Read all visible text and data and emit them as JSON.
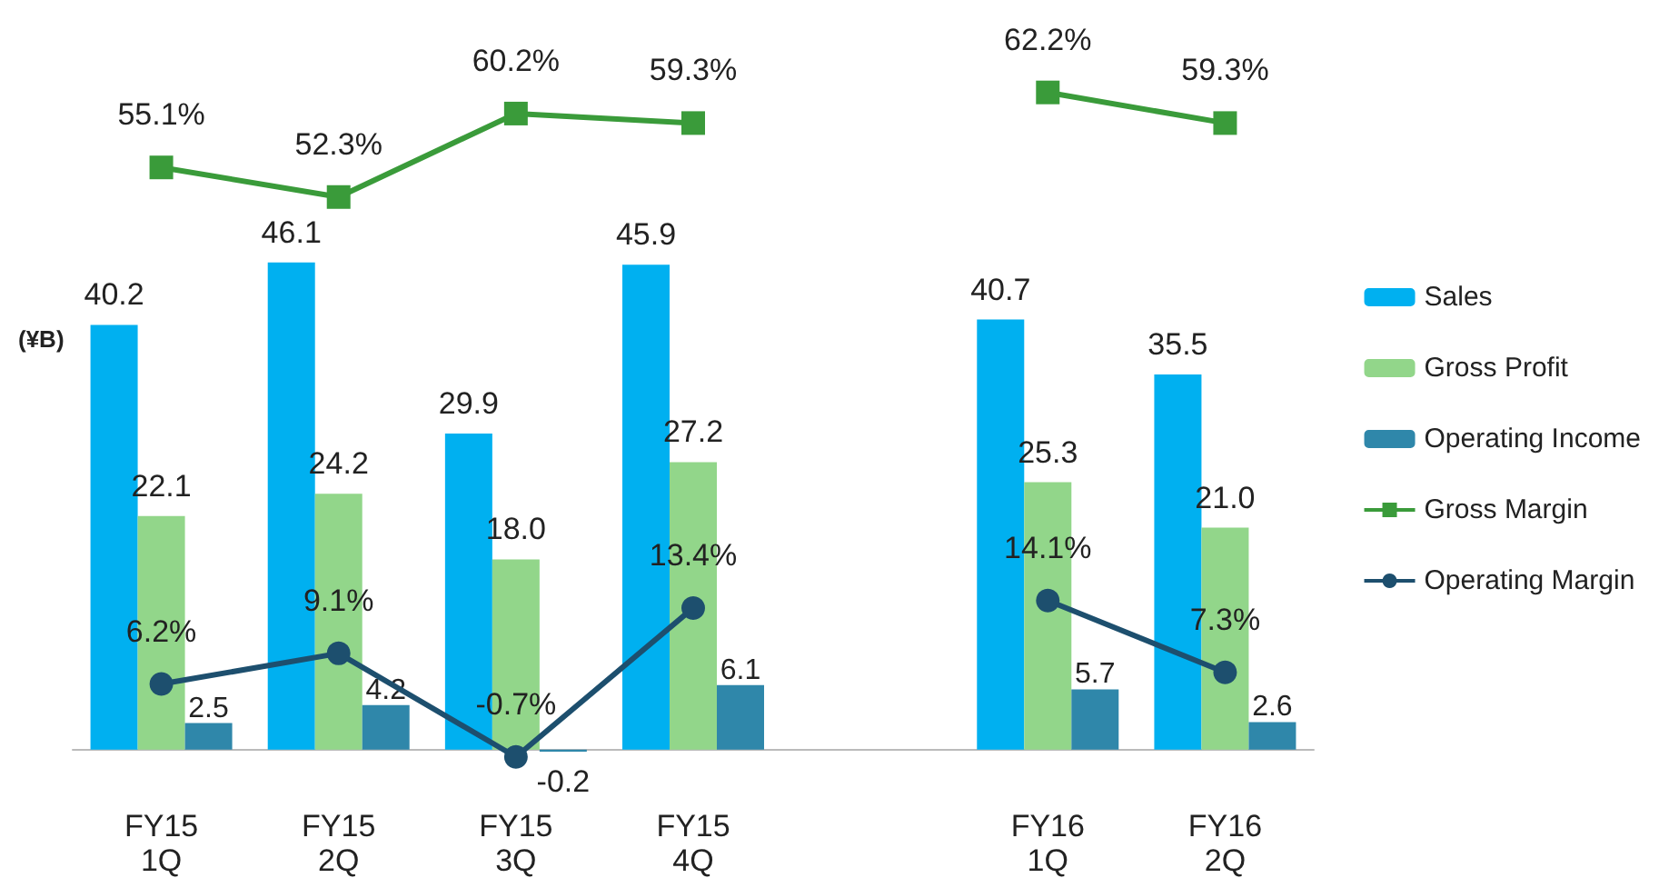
{
  "chart_data": {
    "type": "bar",
    "ylabel": "(¥B)",
    "categories": [
      "FY15 1Q",
      "FY15 2Q",
      "FY15 3Q",
      "FY15 4Q",
      null,
      "FY16 1Q",
      "FY16 2Q"
    ],
    "series": [
      {
        "name": "Sales",
        "color": "#00b0f0",
        "values": [
          40.2,
          46.1,
          29.9,
          45.9,
          null,
          40.7,
          35.5
        ]
      },
      {
        "name": "Gross Profit",
        "color": "#92d68a",
        "values": [
          22.1,
          24.2,
          18.0,
          27.2,
          null,
          25.3,
          21.0
        ],
        "value_labels": [
          "22.1",
          "24.2",
          "18.0",
          "27.2",
          null,
          "25.3",
          "21.0"
        ]
      },
      {
        "name": "Operating Income",
        "color": "#2f87aa",
        "values": [
          2.5,
          4.2,
          -0.2,
          6.1,
          null,
          5.7,
          2.6
        ]
      },
      {
        "name": "Gross Margin",
        "type": "line",
        "color": "#3a9b3a",
        "marker": "square",
        "values": [
          55.1,
          52.3,
          60.2,
          59.3,
          null,
          62.2,
          59.3
        ],
        "value_labels": [
          "55.1%",
          "52.3%",
          "60.2%",
          "59.3%",
          null,
          "62.2%",
          "59.3%"
        ]
      },
      {
        "name": "Operating Margin",
        "type": "line",
        "color": "#1d4f6e",
        "marker": "circle",
        "values": [
          6.2,
          9.1,
          -0.7,
          13.4,
          null,
          14.1,
          7.3
        ],
        "value_labels": [
          "6.2%",
          "9.1%",
          "-0.7%",
          "13.4%",
          null,
          "14.1%",
          "7.3%"
        ]
      }
    ],
    "data_labels": true,
    "grid": false,
    "legend": "right"
  }
}
